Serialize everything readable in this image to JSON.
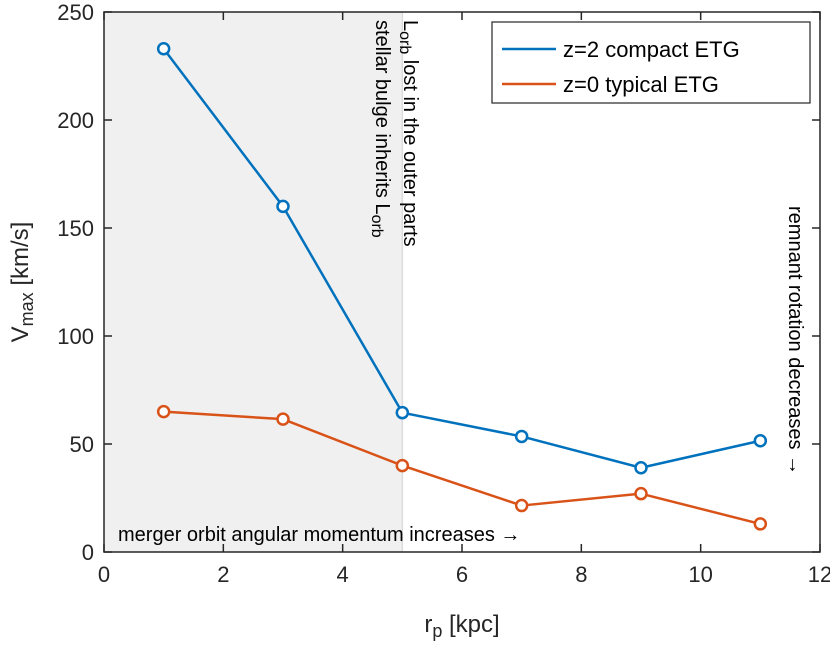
{
  "chart_data": {
    "type": "line",
    "xlabel_main": "r",
    "xlabel_sub": "p",
    "xlabel_unit": " [kpc]",
    "ylabel_main": "V",
    "ylabel_sub": "max",
    "ylabel_unit": " [km/s]",
    "xlim": [
      0,
      12
    ],
    "ylim": [
      0,
      250
    ],
    "xticks": [
      0,
      2,
      4,
      6,
      8,
      10,
      12
    ],
    "yticks": [
      0,
      50,
      100,
      150,
      200,
      250
    ],
    "shaded_region": {
      "x0": 0,
      "x1": 5
    },
    "x": [
      1,
      3,
      5,
      7,
      9,
      11
    ],
    "series": [
      {
        "name": "z=2 compact ETG",
        "color": "#0072BD",
        "values": [
          233,
          160,
          64.5,
          53.5,
          39,
          51.5
        ]
      },
      {
        "name": "z=0 typical ETG",
        "color": "#D95319",
        "values": [
          65,
          61.5,
          40,
          21.5,
          27,
          13
        ]
      }
    ],
    "legend_position": "top-right",
    "annotations": {
      "bottom": "merger orbit angular momentum increases →",
      "left_vertical_main": "stellar bulge inherits L",
      "left_vertical_sub": "orb",
      "right_vertical_main": "L",
      "right_vertical_sub": "orb",
      "right_vertical_rest": " lost in the outer parts",
      "far_right": "remnant rotation decreases →"
    }
  }
}
